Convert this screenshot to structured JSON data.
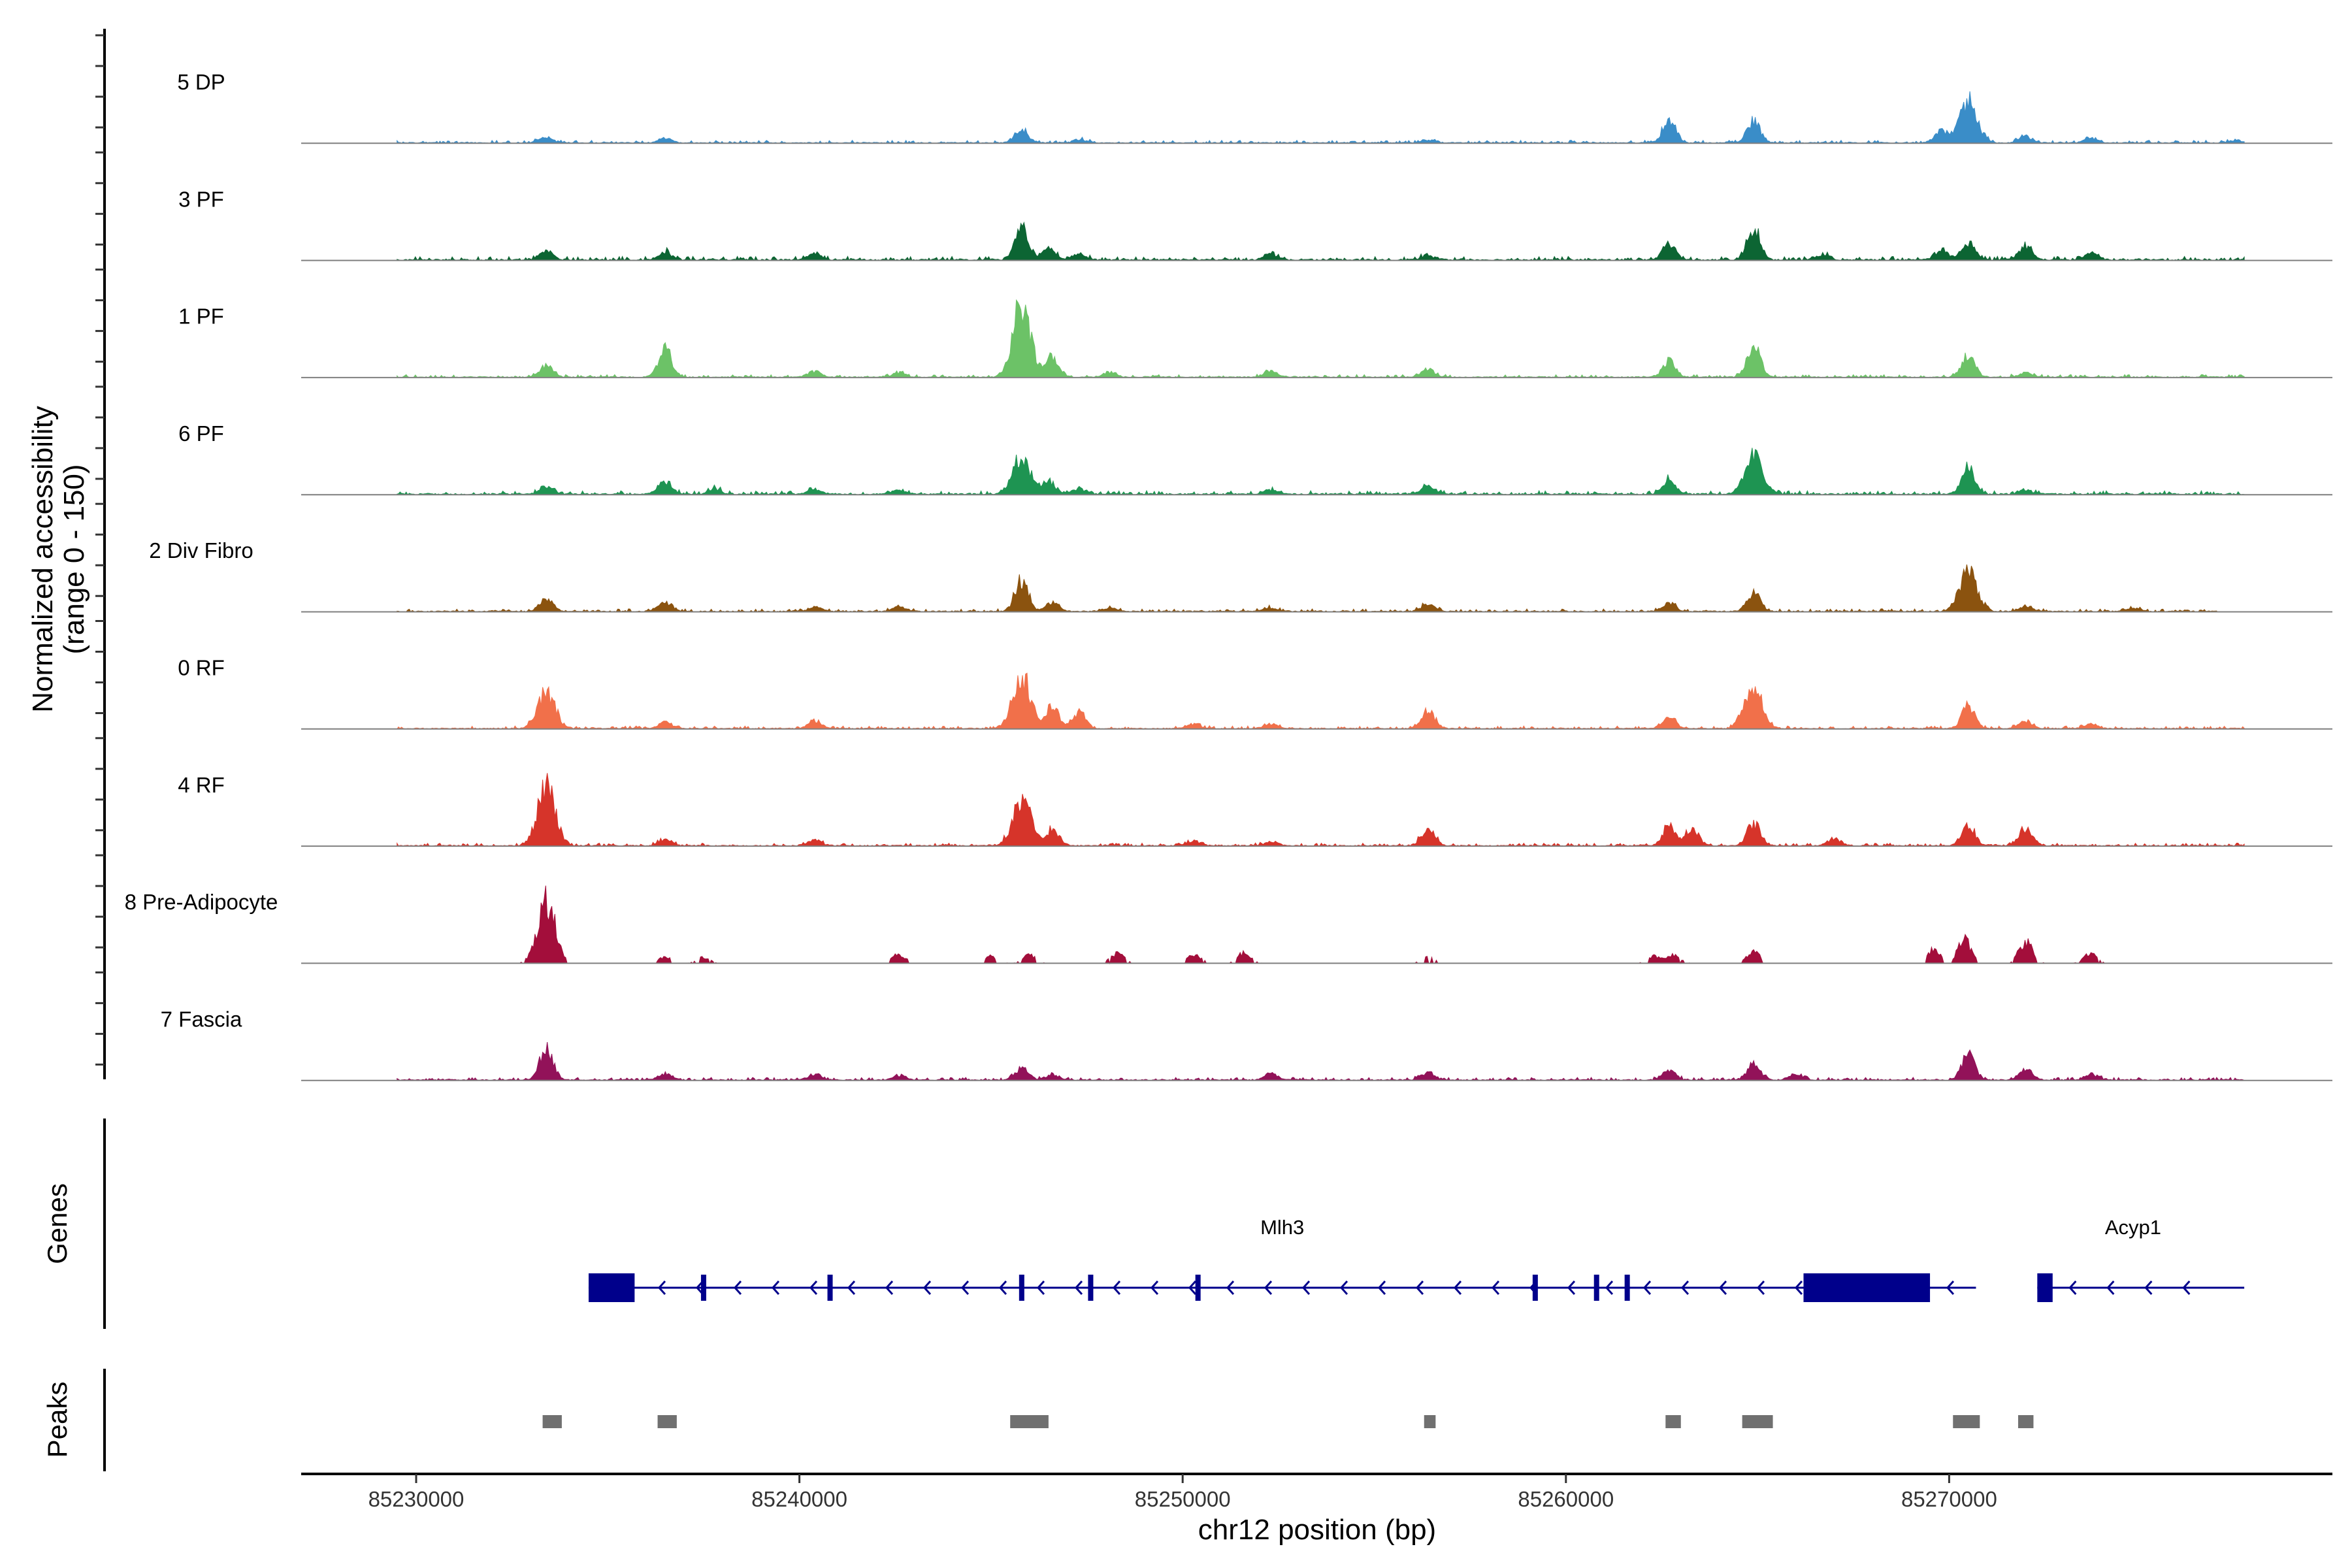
{
  "chart_data": {
    "type": "area",
    "title": "",
    "xlabel": "chr12 position (bp)",
    "ylabel": "Normalized accessibility",
    "ylabel_range": "(range 0 - 150)",
    "ylim": [
      0,
      150
    ],
    "xlim": [
      85227000,
      85280000
    ],
    "x_ticks": [
      85230000,
      85240000,
      85250000,
      85260000,
      85270000
    ],
    "x_tick_labels": [
      "85230000",
      "85240000",
      "85250000",
      "85260000",
      "85270000"
    ],
    "tracks": [
      {
        "name": "5 DP",
        "color": "#3A8DC8",
        "start": 85229500,
        "end": 85277700,
        "noise": 3,
        "peaks": [
          [
            85233400,
            10
          ],
          [
            85236500,
            8
          ],
          [
            85245800,
            22
          ],
          [
            85247300,
            6
          ],
          [
            85256400,
            5
          ],
          [
            85262700,
            40
          ],
          [
            85264900,
            38
          ],
          [
            85269800,
            20
          ],
          [
            85270500,
            75
          ],
          [
            85272000,
            12
          ],
          [
            85273700,
            8
          ],
          [
            85277500,
            4
          ]
        ]
      },
      {
        "name": "3 PF",
        "color": "#0C6533",
        "start": 85229500,
        "end": 85277700,
        "noise": 4,
        "peaks": [
          [
            85233400,
            15
          ],
          [
            85236500,
            14
          ],
          [
            85240400,
            12
          ],
          [
            85245800,
            60
          ],
          [
            85246500,
            20
          ],
          [
            85247300,
            10
          ],
          [
            85252300,
            10
          ],
          [
            85256400,
            8
          ],
          [
            85262700,
            30
          ],
          [
            85264900,
            55
          ],
          [
            85266700,
            8
          ],
          [
            85269800,
            18
          ],
          [
            85270500,
            30
          ],
          [
            85272000,
            22
          ],
          [
            85273700,
            12
          ]
        ]
      },
      {
        "name": "1 PF",
        "color": "#6CC267",
        "start": 85229500,
        "end": 85277700,
        "noise": 3,
        "peaks": [
          [
            85233400,
            20
          ],
          [
            85236500,
            50
          ],
          [
            85240400,
            10
          ],
          [
            85242600,
            8
          ],
          [
            85245800,
            130
          ],
          [
            85246600,
            40
          ],
          [
            85248100,
            8
          ],
          [
            85252300,
            10
          ],
          [
            85256400,
            14
          ],
          [
            85262700,
            28
          ],
          [
            85264900,
            55
          ],
          [
            85270500,
            38
          ],
          [
            85272000,
            8
          ]
        ]
      },
      {
        "name": "6 PF",
        "color": "#1E9452",
        "start": 85229500,
        "end": 85277700,
        "noise": 4,
        "peaks": [
          [
            85233400,
            14
          ],
          [
            85236500,
            22
          ],
          [
            85237800,
            8
          ],
          [
            85240400,
            8
          ],
          [
            85242600,
            8
          ],
          [
            85245800,
            62
          ],
          [
            85246500,
            22
          ],
          [
            85247300,
            10
          ],
          [
            85252300,
            8
          ],
          [
            85256400,
            14
          ],
          [
            85262700,
            26
          ],
          [
            85264900,
            65
          ],
          [
            85270500,
            48
          ],
          [
            85272000,
            8
          ]
        ]
      },
      {
        "name": "2 Div Fibro",
        "color": "#8B530F",
        "start": 85229500,
        "end": 85277000,
        "noise": 3,
        "peaks": [
          [
            85233400,
            22
          ],
          [
            85236500,
            16
          ],
          [
            85240400,
            8
          ],
          [
            85242600,
            8
          ],
          [
            85245800,
            55
          ],
          [
            85246600,
            16
          ],
          [
            85248100,
            6
          ],
          [
            85252300,
            6
          ],
          [
            85256400,
            14
          ],
          [
            85262700,
            14
          ],
          [
            85264900,
            32
          ],
          [
            85270500,
            68
          ],
          [
            85272000,
            10
          ],
          [
            85274800,
            6
          ]
        ]
      },
      {
        "name": "0 RF",
        "color": "#F1704A",
        "start": 85229500,
        "end": 85277700,
        "noise": 3,
        "peaks": [
          [
            85233400,
            62
          ],
          [
            85236500,
            12
          ],
          [
            85240400,
            14
          ],
          [
            85245800,
            95
          ],
          [
            85246600,
            40
          ],
          [
            85247300,
            28
          ],
          [
            85250300,
            8
          ],
          [
            85252300,
            8
          ],
          [
            85256400,
            30
          ],
          [
            85262700,
            20
          ],
          [
            85264900,
            75
          ],
          [
            85270500,
            40
          ],
          [
            85272000,
            14
          ],
          [
            85273700,
            8
          ]
        ]
      },
      {
        "name": "4 RF",
        "color": "#D6342A",
        "start": 85229500,
        "end": 85277700,
        "noise": 3,
        "peaks": [
          [
            85233400,
            105
          ],
          [
            85236500,
            10
          ],
          [
            85240400,
            10
          ],
          [
            85245800,
            85
          ],
          [
            85246600,
            30
          ],
          [
            85250300,
            8
          ],
          [
            85252300,
            8
          ],
          [
            85256400,
            30
          ],
          [
            85262700,
            35
          ],
          [
            85263300,
            28
          ],
          [
            85264900,
            40
          ],
          [
            85267000,
            12
          ],
          [
            85270500,
            35
          ],
          [
            85272000,
            32
          ]
        ]
      },
      {
        "name": "8 Pre-Adipocyte",
        "color": "#A30E3B",
        "start": 85229500,
        "end": 85274400,
        "noise": 0,
        "peaks": [
          [
            85233400,
            110
          ],
          [
            85236500,
            12
          ],
          [
            85237500,
            10
          ],
          [
            85242600,
            16
          ],
          [
            85245000,
            14
          ],
          [
            85246000,
            14
          ],
          [
            85248300,
            18
          ],
          [
            85250300,
            16
          ],
          [
            85251600,
            18
          ],
          [
            85256400,
            10
          ],
          [
            85262300,
            12
          ],
          [
            85262800,
            14
          ],
          [
            85264900,
            22
          ],
          [
            85269600,
            24
          ],
          [
            85270400,
            42
          ],
          [
            85272000,
            40
          ],
          [
            85273700,
            18
          ]
        ]
      },
      {
        "name": "7 Fascia",
        "color": "#921259",
        "start": 85229500,
        "end": 85277700,
        "noise": 3,
        "peaks": [
          [
            85233400,
            58
          ],
          [
            85236500,
            12
          ],
          [
            85240400,
            10
          ],
          [
            85242600,
            8
          ],
          [
            85245800,
            22
          ],
          [
            85246600,
            10
          ],
          [
            85252300,
            12
          ],
          [
            85256400,
            14
          ],
          [
            85262700,
            16
          ],
          [
            85264900,
            28
          ],
          [
            85266000,
            10
          ],
          [
            85270500,
            45
          ],
          [
            85272000,
            18
          ],
          [
            85273700,
            10
          ]
        ]
      }
    ],
    "genes": [
      {
        "name": "Mlh3",
        "start": 85234500,
        "end": 85270700,
        "strand": "-",
        "utr": [
          [
            85234500,
            85235700
          ],
          [
            85266200,
            85269500
          ]
        ],
        "exons": [
          85237500,
          85240800,
          85245800,
          85247600,
          85250400,
          85259200,
          85260800,
          85261600
        ]
      },
      {
        "name": "Acyp1",
        "start": 85272300,
        "end": 85277700,
        "strand": "-",
        "utr": [
          [
            85272300,
            85272700
          ]
        ],
        "exons": []
      }
    ],
    "peaks": [
      [
        85233300,
        85233800
      ],
      [
        85236300,
        85236800
      ],
      [
        85245500,
        85246500
      ],
      [
        85256300,
        85256600
      ],
      [
        85262600,
        85263000
      ],
      [
        85264600,
        85265400
      ],
      [
        85270100,
        85270800
      ],
      [
        85271800,
        85272200
      ]
    ],
    "panels": {
      "genes": "Genes",
      "peaks": "Peaks"
    },
    "colors": {
      "gene": "#00008B",
      "peak": "#707070",
      "axis": "#000000",
      "baseline": "#7F7F7F"
    }
  }
}
